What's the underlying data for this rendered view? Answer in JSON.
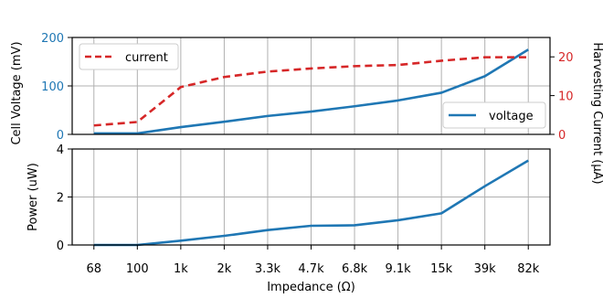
{
  "chart_data": [
    {
      "type": "line",
      "panel": "top",
      "categories": [
        "68",
        "100",
        "1k",
        "2k",
        "3.3k",
        "4.7k",
        "6.8k",
        "9.1k",
        "15k",
        "39k",
        "82k"
      ],
      "xlabel": "Impedance (Ω)",
      "left_axis": {
        "label": "Cell Voltage (mV)",
        "ylim": [
          0,
          200
        ],
        "ticks": [
          "0",
          "100",
          "200"
        ],
        "color": "#1f77b4"
      },
      "right_axis": {
        "label": "Harvesting Current (μA)",
        "ylim": [
          0,
          25
        ],
        "ticks": [
          "0",
          "10",
          "20"
        ],
        "color": "#d62728"
      },
      "series": [
        {
          "name": "voltage",
          "axis": "left",
          "color": "#1f77b4",
          "style": "solid",
          "values": [
            2,
            2,
            15,
            26,
            38,
            47,
            58,
            70,
            86,
            120,
            175
          ]
        },
        {
          "name": "current",
          "axis": "right",
          "color": "#d62728",
          "style": "dashed",
          "values": [
            2.3,
            3.2,
            12.2,
            14.8,
            16.2,
            17.0,
            17.6,
            17.9,
            19.0,
            19.9,
            19.9
          ]
        }
      ],
      "legends": [
        {
          "entries": [
            "current"
          ],
          "placement": "upper-left"
        },
        {
          "entries": [
            "voltage"
          ],
          "placement": "lower-right"
        }
      ],
      "grid": true
    },
    {
      "type": "line",
      "panel": "bottom",
      "categories": [
        "68",
        "100",
        "1k",
        "2k",
        "3.3k",
        "4.7k",
        "6.8k",
        "9.1k",
        "15k",
        "39k",
        "82k"
      ],
      "xlabel": "Impedance (Ω)",
      "ylabel": "Power (uW)",
      "ylim": [
        0,
        4
      ],
      "yticks": [
        "0",
        "2",
        "4"
      ],
      "series": [
        {
          "color": "#1f77b4",
          "style": "solid",
          "values": [
            0.0,
            0.0,
            0.18,
            0.38,
            0.62,
            0.8,
            0.82,
            1.03,
            1.32,
            2.45,
            3.52
          ]
        }
      ],
      "grid": true
    }
  ]
}
